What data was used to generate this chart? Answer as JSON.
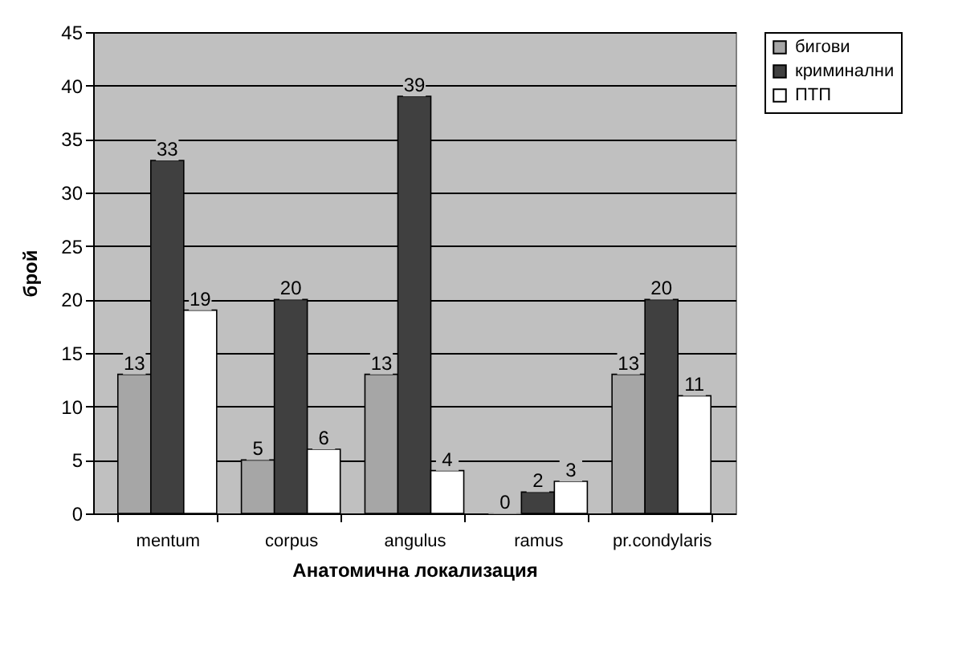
{
  "chart_data": {
    "type": "bar",
    "xlabel": "Анатомична локализация",
    "ylabel": "брой",
    "categories": [
      "mentum",
      "corpus",
      "angulus",
      "ramus",
      "pr.condylaris"
    ],
    "series": [
      {
        "name": "бигови",
        "color": "#a6a6a6",
        "values": [
          13,
          5,
          13,
          0,
          13
        ]
      },
      {
        "name": "криминални",
        "color": "#404040",
        "values": [
          33,
          20,
          39,
          2,
          20
        ]
      },
      {
        "name": "ПТП",
        "color": "#ffffff",
        "values": [
          19,
          6,
          4,
          3,
          11
        ]
      }
    ],
    "ylim": [
      0,
      45
    ],
    "yticks": [
      0,
      5,
      10,
      15,
      20,
      25,
      30,
      35,
      40,
      45
    ],
    "grid": "y",
    "legend": "right",
    "data_labels": true
  }
}
